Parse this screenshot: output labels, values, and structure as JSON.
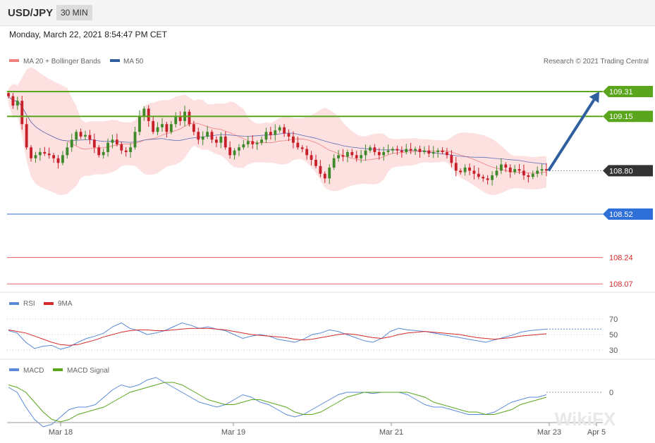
{
  "header": {
    "symbol": "USD/JPY",
    "timeframe": "30 MIN"
  },
  "datetime": "Monday, March 22, 2021 8:54:47 PM CET",
  "copyright": "Research © 2021 Trading Central",
  "watermark": "WikiFX",
  "colors": {
    "resistance": "#5aa51c",
    "support": "#2f6fd8",
    "current": "#333333",
    "target_line": "#e06060",
    "arrow": "#2f5f9e",
    "bull": "#3e8a2a",
    "bear": "#c8202a",
    "bb_fill": "#fde1e1",
    "ma20": "#f08080",
    "ma50": "#5b6fb5",
    "rsi": "#5b8ad8",
    "rsi_ma": "#d42a2a",
    "macd": "#5b8ad8",
    "macd_signal": "#5aa51c"
  },
  "chart_data": [
    {
      "type": "candlestick",
      "title": "USD/JPY 30 MIN",
      "legend": [
        "MA 20 + Bollinger Bands",
        "MA 50"
      ],
      "legend_position": "top-left",
      "x_ticks": [
        "Mar 18",
        "Mar 19",
        "Mar 21",
        "Mar 23",
        "Apr 5"
      ],
      "ylim": [
        108.0,
        109.4
      ],
      "price_close": [
        109.28,
        109.22,
        109.25,
        109.1,
        108.95,
        108.88,
        108.9,
        108.92,
        108.91,
        108.9,
        108.88,
        108.85,
        108.9,
        108.95,
        109.0,
        109.05,
        109.02,
        109.03,
        109.0,
        108.95,
        108.9,
        108.92,
        108.98,
        109.0,
        108.97,
        108.93,
        108.92,
        108.95,
        109.05,
        109.15,
        109.2,
        109.12,
        109.05,
        109.08,
        109.1,
        109.05,
        109.1,
        109.15,
        109.12,
        109.18,
        109.1,
        109.05,
        109.0,
        109.02,
        109.05,
        109.0,
        108.98,
        109.02,
        108.95,
        108.9,
        108.93,
        108.95,
        108.97,
        108.99,
        108.97,
        108.98,
        109.0,
        109.05,
        109.03,
        109.06,
        109.08,
        109.04,
        109.02,
        108.98,
        108.95,
        108.94,
        108.9,
        108.87,
        108.83,
        108.78,
        108.75,
        108.82,
        108.88,
        108.9,
        108.89,
        108.92,
        108.9,
        108.88,
        108.9,
        108.93,
        108.95,
        108.92,
        108.9,
        108.92,
        108.93,
        108.94,
        108.93,
        108.92,
        108.94,
        108.93,
        108.94,
        108.92,
        108.93,
        108.91,
        108.92,
        108.93,
        108.92,
        108.9,
        108.85,
        108.8,
        108.79,
        108.82,
        108.8,
        108.78,
        108.76,
        108.75,
        108.74,
        108.77,
        108.8,
        108.84,
        108.82,
        108.79,
        108.81,
        108.8,
        108.77,
        108.76,
        108.78,
        108.8,
        108.81,
        108.8
      ],
      "current_price": 108.8,
      "levels": [
        {
          "value": 109.31,
          "label": "109.31",
          "kind": "resistance"
        },
        {
          "value": 109.15,
          "label": "109.15",
          "kind": "resistance"
        },
        {
          "value": 108.8,
          "label": "108.80",
          "kind": "current"
        },
        {
          "value": 108.52,
          "label": "108.52",
          "kind": "support"
        },
        {
          "value": 108.24,
          "label": "108.24",
          "kind": "target"
        },
        {
          "value": 108.07,
          "label": "108.07",
          "kind": "target"
        }
      ],
      "forecast_arrow": {
        "from": 108.8,
        "to": 109.31
      }
    },
    {
      "type": "line",
      "legend": [
        "RSI",
        "9MA"
      ],
      "legend_position": "top-left",
      "y_ticks": [
        "70",
        "50",
        "30"
      ],
      "ylim": [
        20,
        80
      ],
      "rsi": [
        55,
        52,
        40,
        32,
        35,
        36,
        31,
        34,
        40,
        45,
        48,
        52,
        60,
        65,
        58,
        55,
        50,
        52,
        55,
        60,
        65,
        62,
        58,
        60,
        57,
        55,
        50,
        45,
        48,
        50,
        48,
        44,
        42,
        40,
        44,
        50,
        52,
        56,
        54,
        50,
        46,
        42,
        40,
        45,
        54,
        58,
        56,
        55,
        54,
        52,
        50,
        48,
        46,
        44,
        42,
        40,
        43,
        46,
        49,
        53,
        55,
        56,
        57
      ],
      "rsi_ma": [
        56,
        54,
        52,
        48,
        44,
        40,
        37,
        36,
        37,
        40,
        43,
        47,
        50,
        53,
        55,
        56,
        56,
        55,
        55,
        56,
        57,
        58,
        58,
        58,
        57,
        56,
        54,
        52,
        50,
        49,
        48,
        47,
        46,
        44,
        43,
        44,
        46,
        48,
        50,
        51,
        50,
        48,
        46,
        45,
        47,
        50,
        52,
        53,
        54,
        53,
        52,
        51,
        50,
        48,
        46,
        45,
        44,
        45,
        46,
        48,
        49,
        50,
        51
      ]
    },
    {
      "type": "line",
      "legend": [
        "MACD",
        "MACD Signal"
      ],
      "legend_position": "top-left",
      "y_ticks": [
        "0"
      ],
      "ylim": [
        -0.2,
        0.1
      ],
      "macd": [
        0.02,
        0.0,
        -0.06,
        -0.11,
        -0.14,
        -0.13,
        -0.1,
        -0.07,
        -0.06,
        -0.06,
        -0.05,
        -0.02,
        0.01,
        0.03,
        0.02,
        0.03,
        0.05,
        0.06,
        0.04,
        0.02,
        0.0,
        -0.02,
        -0.04,
        -0.05,
        -0.06,
        -0.05,
        -0.03,
        -0.01,
        -0.02,
        -0.04,
        -0.05,
        -0.07,
        -0.09,
        -0.1,
        -0.09,
        -0.07,
        -0.05,
        -0.03,
        -0.01,
        0.0,
        0.0,
        0.0,
        -0.005,
        0.0,
        0.0,
        0.0,
        -0.01,
        -0.03,
        -0.05,
        -0.06,
        -0.06,
        -0.07,
        -0.08,
        -0.09,
        -0.09,
        -0.09,
        -0.08,
        -0.06,
        -0.04,
        -0.03,
        -0.02,
        -0.02,
        -0.01
      ],
      "signal": [
        0.03,
        0.02,
        0.0,
        -0.04,
        -0.08,
        -0.11,
        -0.12,
        -0.11,
        -0.09,
        -0.08,
        -0.07,
        -0.06,
        -0.04,
        -0.02,
        0.0,
        0.01,
        0.02,
        0.03,
        0.04,
        0.04,
        0.03,
        0.01,
        -0.01,
        -0.03,
        -0.04,
        -0.05,
        -0.05,
        -0.04,
        -0.03,
        -0.03,
        -0.04,
        -0.05,
        -0.06,
        -0.08,
        -0.09,
        -0.09,
        -0.08,
        -0.06,
        -0.04,
        -0.02,
        -0.01,
        0.0,
        0.0,
        0.0,
        0.0,
        0.0,
        0.0,
        -0.01,
        -0.02,
        -0.04,
        -0.05,
        -0.06,
        -0.07,
        -0.08,
        -0.08,
        -0.09,
        -0.09,
        -0.08,
        -0.07,
        -0.05,
        -0.04,
        -0.03,
        -0.02
      ]
    }
  ]
}
